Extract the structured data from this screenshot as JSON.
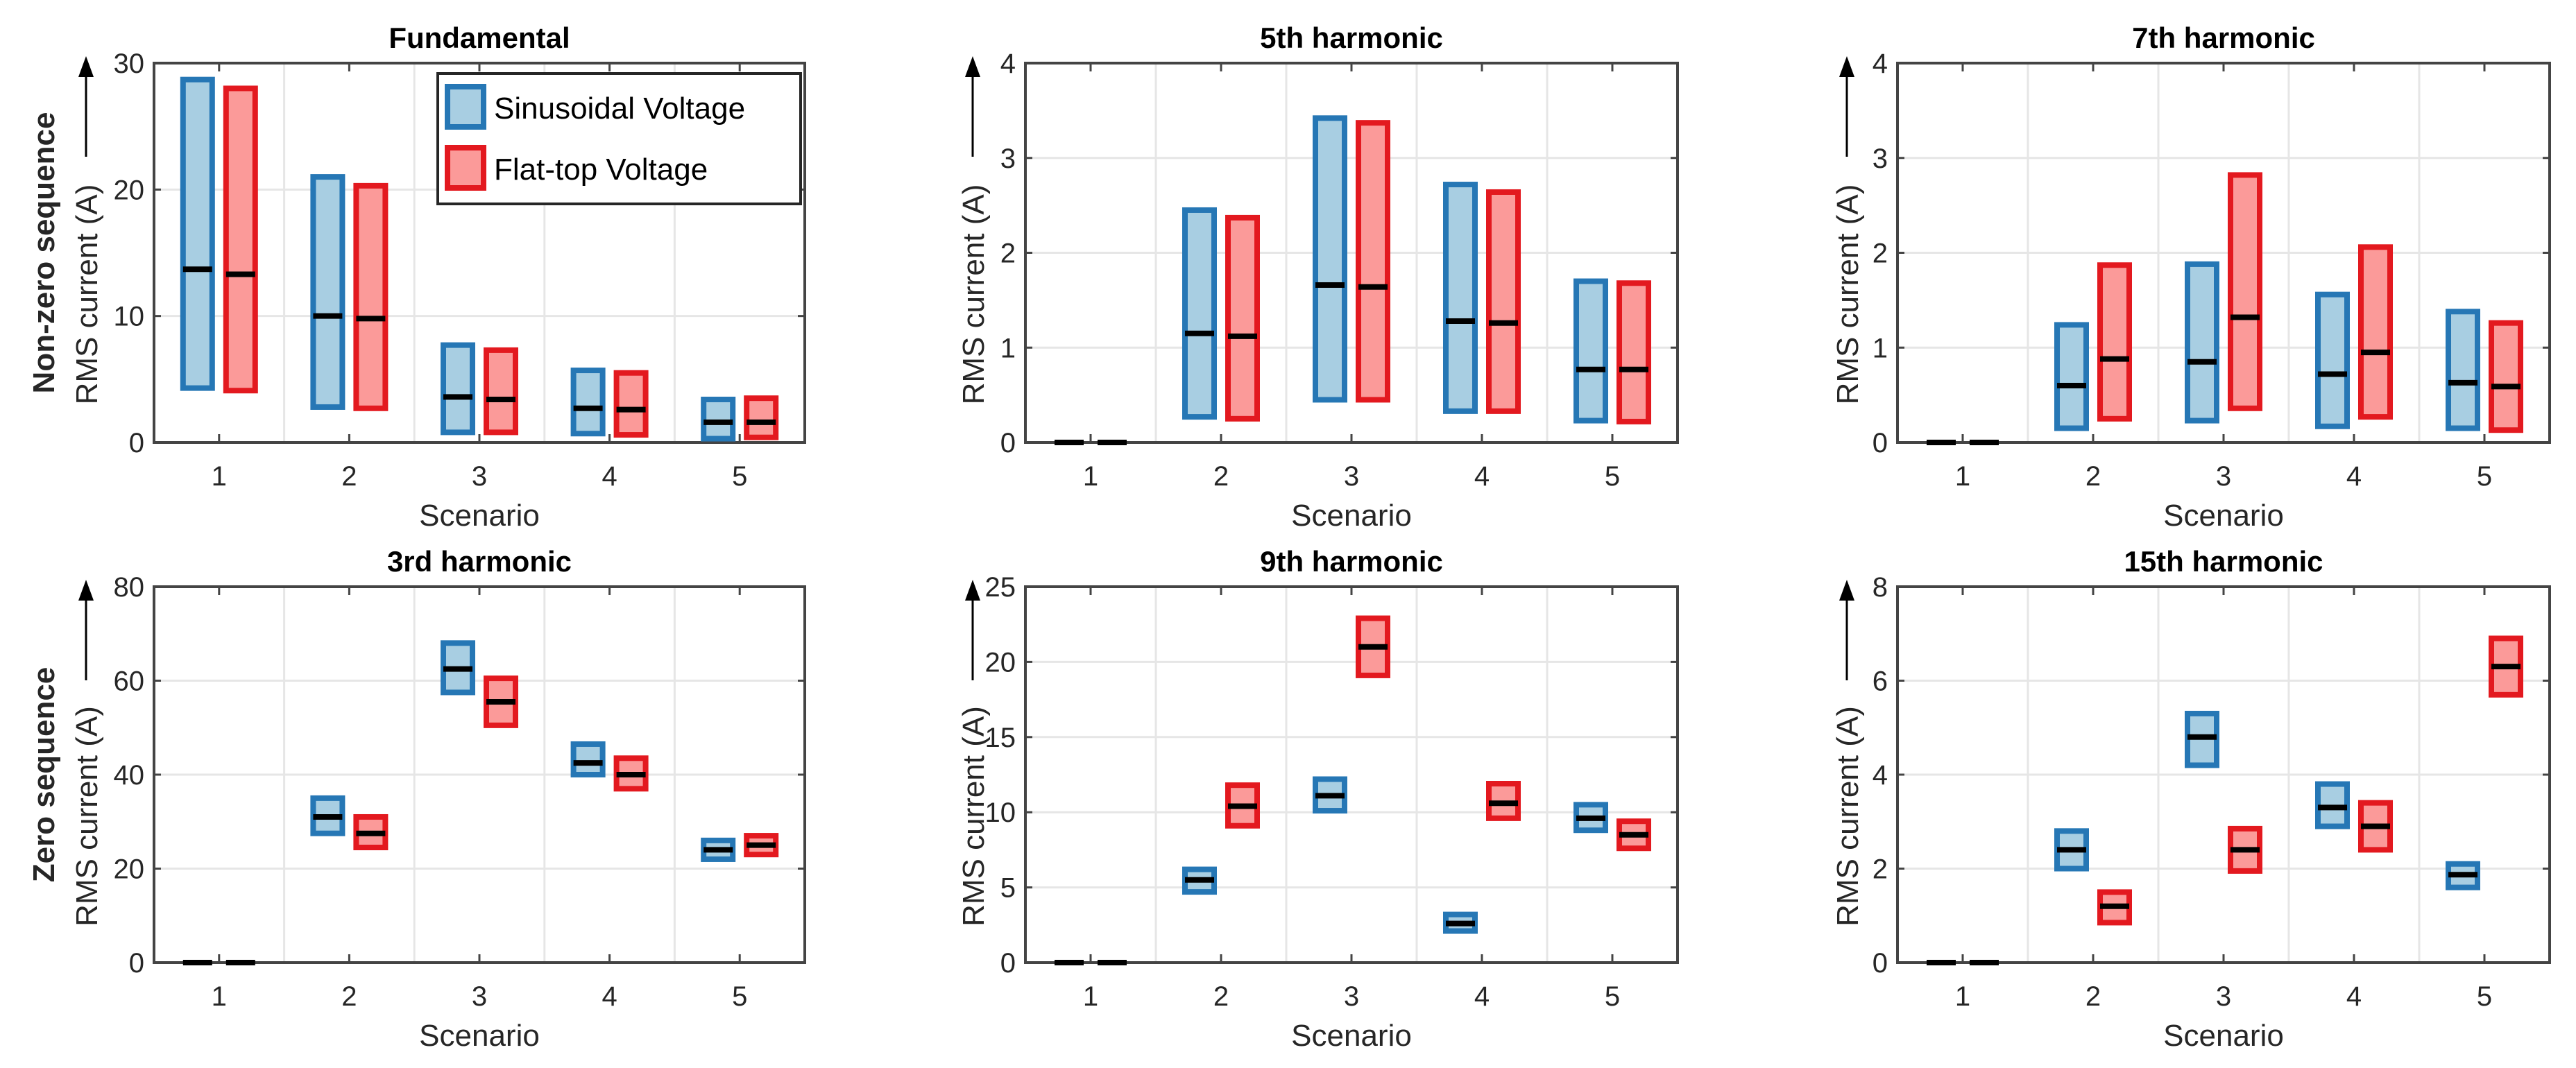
{
  "colors": {
    "sinusoidal_stroke": "#2677b5",
    "sinusoidal_fill": "#a8cee2",
    "flattop_stroke": "#e3191f",
    "flattop_fill": "#fb9a99",
    "median": "#000000",
    "grid": "#e6e6e6"
  },
  "row_labels": [
    "Non-zero sequence",
    "Zero sequence"
  ],
  "legend": [
    "Sinusoidal Voltage",
    "Flat-top Voltage"
  ],
  "chart_data": [
    {
      "type": "box-range",
      "title": "Fundamental",
      "xlabel": "Scenario",
      "ylabel": "RMS current (A)",
      "categories": [
        "1",
        "2",
        "3",
        "4",
        "5"
      ],
      "ylim": [
        0,
        30
      ],
      "yticks": [
        "0",
        "10",
        "20",
        "30"
      ],
      "legend_position": "top-right",
      "series": [
        {
          "name": "Sinusoidal Voltage",
          "min": [
            4.3,
            2.8,
            0.8,
            0.7,
            0.3
          ],
          "median": [
            13.7,
            10.0,
            3.6,
            2.7,
            1.6
          ],
          "max": [
            28.7,
            21.0,
            7.7,
            5.7,
            3.4
          ]
        },
        {
          "name": "Flat-top Voltage",
          "min": [
            4.1,
            2.7,
            0.8,
            0.6,
            0.4
          ],
          "median": [
            13.3,
            9.8,
            3.4,
            2.6,
            1.6
          ],
          "max": [
            28.0,
            20.3,
            7.3,
            5.5,
            3.5
          ]
        }
      ]
    },
    {
      "type": "box-range",
      "title": "5th harmonic",
      "xlabel": "Scenario",
      "ylabel": "RMS current (A)",
      "categories": [
        "1",
        "2",
        "3",
        "4",
        "5"
      ],
      "ylim": [
        0,
        4
      ],
      "yticks": [
        "0",
        "1",
        "2",
        "3",
        "4"
      ],
      "series": [
        {
          "name": "Sinusoidal Voltage",
          "min": [
            0,
            0.27,
            0.45,
            0.33,
            0.23
          ],
          "median": [
            0,
            1.15,
            1.66,
            1.28,
            0.77
          ],
          "max": [
            0,
            2.45,
            3.42,
            2.72,
            1.7
          ]
        },
        {
          "name": "Flat-top Voltage",
          "min": [
            0,
            0.25,
            0.45,
            0.33,
            0.22
          ],
          "median": [
            0,
            1.12,
            1.64,
            1.26,
            0.77
          ],
          "max": [
            0,
            2.37,
            3.37,
            2.64,
            1.68
          ]
        }
      ]
    },
    {
      "type": "box-range",
      "title": "7th harmonic",
      "xlabel": "Scenario",
      "ylabel": "RMS current (A)",
      "categories": [
        "1",
        "2",
        "3",
        "4",
        "5"
      ],
      "ylim": [
        0,
        4
      ],
      "yticks": [
        "0",
        "1",
        "2",
        "3",
        "4"
      ],
      "series": [
        {
          "name": "Sinusoidal Voltage",
          "min": [
            0,
            0.15,
            0.23,
            0.17,
            0.15
          ],
          "median": [
            0,
            0.6,
            0.85,
            0.72,
            0.63
          ],
          "max": [
            0,
            1.24,
            1.88,
            1.56,
            1.38
          ]
        },
        {
          "name": "Flat-top Voltage",
          "min": [
            0,
            0.25,
            0.36,
            0.27,
            0.13
          ],
          "median": [
            0,
            0.88,
            1.32,
            0.95,
            0.59
          ],
          "max": [
            0,
            1.87,
            2.82,
            2.06,
            1.26
          ]
        }
      ]
    },
    {
      "type": "box-range",
      "title": "3rd harmonic",
      "xlabel": "Scenario",
      "ylabel": "RMS current (A)",
      "categories": [
        "1",
        "2",
        "3",
        "4",
        "5"
      ],
      "ylim": [
        0,
        80
      ],
      "yticks": [
        "0",
        "20",
        "40",
        "60",
        "80"
      ],
      "series": [
        {
          "name": "Sinusoidal Voltage",
          "min": [
            0,
            27.5,
            57.5,
            40,
            22
          ],
          "median": [
            0,
            31,
            62.5,
            42.5,
            24
          ],
          "max": [
            0,
            35,
            68,
            46.5,
            26
          ]
        },
        {
          "name": "Flat-top Voltage",
          "min": [
            0,
            24.5,
            50.5,
            37,
            23
          ],
          "median": [
            0,
            27.5,
            55.5,
            40,
            25
          ],
          "max": [
            0,
            31,
            60.5,
            43.5,
            27
          ]
        }
      ]
    },
    {
      "type": "box-range",
      "title": "9th harmonic",
      "xlabel": "Scenario",
      "ylabel": "RMS current (A)",
      "categories": [
        "1",
        "2",
        "3",
        "4",
        "5"
      ],
      "ylim": [
        0,
        25
      ],
      "yticks": [
        "0",
        "5",
        "10",
        "15",
        "20",
        "25"
      ],
      "series": [
        {
          "name": "Sinusoidal Voltage",
          "min": [
            0,
            4.7,
            10.1,
            2.1,
            8.8
          ],
          "median": [
            0,
            5.5,
            11.1,
            2.6,
            9.6
          ],
          "max": [
            0,
            6.2,
            12.2,
            3.2,
            10.5
          ]
        },
        {
          "name": "Flat-top Voltage",
          "min": [
            0,
            9.1,
            19.1,
            9.6,
            7.6
          ],
          "median": [
            0,
            10.4,
            21.0,
            10.6,
            8.5
          ],
          "max": [
            0,
            11.8,
            22.9,
            11.9,
            9.4
          ]
        }
      ]
    },
    {
      "type": "box-range",
      "title": "15th harmonic",
      "xlabel": "Scenario",
      "ylabel": "RMS current (A)",
      "categories": [
        "1",
        "2",
        "3",
        "4",
        "5"
      ],
      "ylim": [
        0,
        8
      ],
      "yticks": [
        "0",
        "2",
        "4",
        "6",
        "8"
      ],
      "series": [
        {
          "name": "Sinusoidal Voltage",
          "min": [
            0,
            2.0,
            4.2,
            2.9,
            1.6
          ],
          "median": [
            0,
            2.4,
            4.8,
            3.3,
            1.87
          ],
          "max": [
            0,
            2.8,
            5.3,
            3.8,
            2.1
          ]
        },
        {
          "name": "Flat-top Voltage",
          "min": [
            0,
            0.85,
            1.95,
            2.4,
            5.7
          ],
          "median": [
            0,
            1.2,
            2.4,
            2.9,
            6.3
          ],
          "max": [
            0,
            1.5,
            2.85,
            3.4,
            6.9
          ]
        }
      ]
    }
  ]
}
